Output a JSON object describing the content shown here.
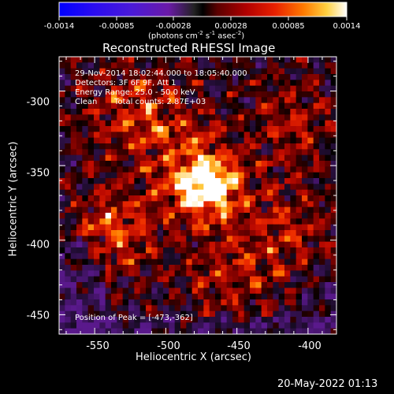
{
  "colorbar": {
    "ticks": [
      "-0.0014",
      "-0.00085",
      "-0.00028",
      "0.00028",
      "0.00085",
      "0.0014"
    ],
    "unit_label_prefix": "(photons cm",
    "unit_label_sup1": "-2",
    "unit_label_mid": " s",
    "unit_label_sup2": "-1",
    "unit_label_mid2": " asec",
    "unit_label_sup3": "-2",
    "unit_label_suffix": ")"
  },
  "title": "Reconstructed RHESSI Image",
  "info": {
    "line1": "29-Nov-2014 18:02:44.000 to 18:05:40.000",
    "line2": "Detectors: 3F 6F 9F, Att 1",
    "line3": "Energy Range: 25.0 - 50.0 keV",
    "line4_left": "Clean",
    "line4_right": "Total counts: 2.87E+03",
    "peak": "Position of Peak = [-473,-362]"
  },
  "x_axis": {
    "label": "Heliocentric X (arcsec)",
    "ticks": [
      "-550",
      "-500",
      "-450",
      "-400"
    ],
    "tick_values": [
      -550,
      -500,
      -450,
      -400
    ],
    "range": [
      -575,
      -380
    ]
  },
  "y_axis": {
    "label": "Heliocentric Y (arcsec)",
    "ticks": [
      "-300",
      "-350",
      "-400",
      "-450"
    ],
    "tick_values": [
      -300,
      -350,
      -400,
      -450
    ],
    "range": [
      -463,
      -277
    ]
  },
  "peak_position": [
    -473,
    -362
  ],
  "footer_date": "20-May-2022 01:13",
  "colors": {
    "foreground": "#ffffff",
    "background": "#000000"
  }
}
